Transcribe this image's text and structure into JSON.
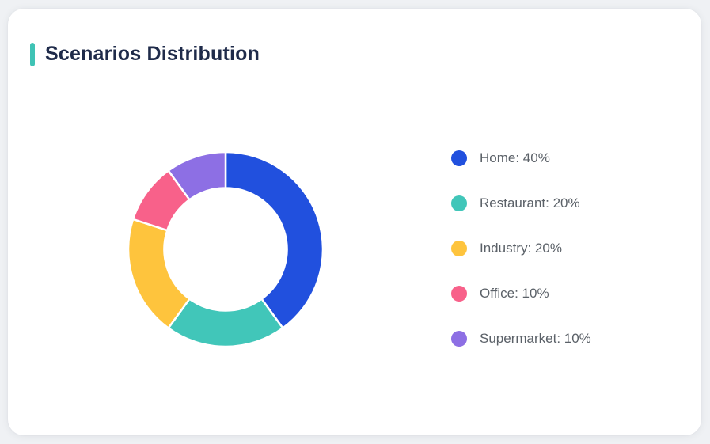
{
  "card": {
    "title": "Scenarios Distribution"
  },
  "theme": {
    "accent": "#3FC3B5",
    "title_color": "#1F2B4A",
    "legend_text_color": "#5B6168",
    "card_background": "#FFFFFF",
    "page_background": "#EFF1F4",
    "slice_separator_color": "#FFFFFF"
  },
  "chart_data": {
    "type": "pie",
    "subtype": "donut",
    "title": "Scenarios Distribution",
    "start_angle_deg": 0,
    "direction": "clockwise",
    "inner_radius_ratio": 0.63,
    "legend_position": "right",
    "legend_marker": "circle",
    "series": [
      {
        "name": "Home",
        "value": 40,
        "color": "#2150DE",
        "label": "Home: 40%"
      },
      {
        "name": "Restaurant",
        "value": 20,
        "color": "#41C6B9",
        "label": "Restaurant: 20%"
      },
      {
        "name": "Industry",
        "value": 20,
        "color": "#FEC43D",
        "label": "Industry: 20%"
      },
      {
        "name": "Office",
        "value": 10,
        "color": "#F8618A",
        "label": "Office: 10%"
      },
      {
        "name": "Supermarket",
        "value": 10,
        "color": "#8D6FE4",
        "label": "Supermarket: 10%"
      }
    ]
  }
}
